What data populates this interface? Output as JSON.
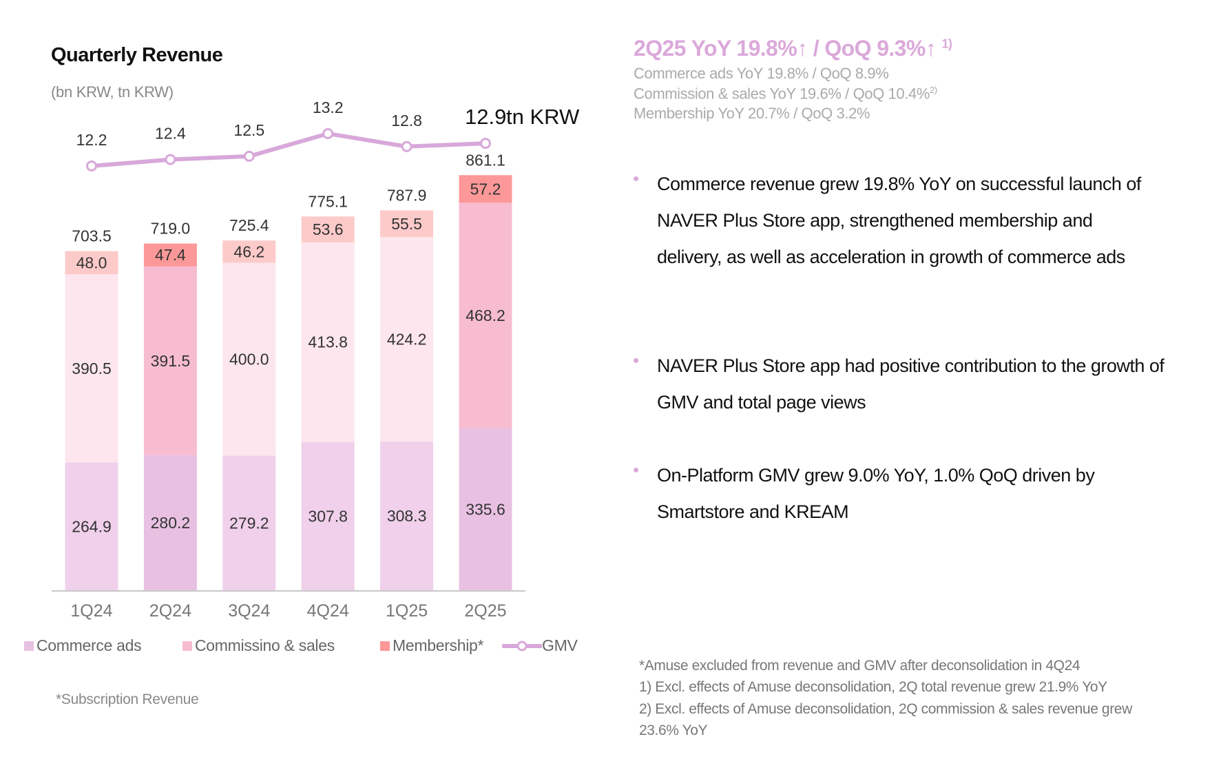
{
  "chart_data": {
    "type": "bar",
    "title": "Quarterly Revenue",
    "unit_label": "(bn KRW, tn KRW)",
    "categories": [
      "1Q24",
      "2Q24",
      "3Q24",
      "4Q24",
      "1Q25",
      "2Q25"
    ],
    "highlighted": [
      false,
      true,
      false,
      false,
      false,
      true
    ],
    "series": [
      {
        "name": "Commerce ads",
        "values": [
          264.9,
          280.2,
          279.2,
          307.8,
          308.3,
          335.6
        ],
        "color": "#f0d0ea",
        "highlight_color": "#e8c1e2"
      },
      {
        "name": "Commissino & sales",
        "values": [
          390.5,
          391.5,
          400.0,
          413.8,
          424.2,
          468.2
        ],
        "color": "#fde6ee",
        "highlight_color": "#f7bccf"
      },
      {
        "name": "Membership*",
        "values": [
          48.0,
          47.4,
          46.2,
          53.6,
          55.5,
          57.2
        ],
        "color": "#fdcaca",
        "highlight_color": "#fc9898"
      }
    ],
    "totals": [
      "703.5",
      "719.0",
      "725.4",
      "775.1",
      "787.9",
      "861.1"
    ],
    "line_series": {
      "name": "GMV",
      "values": [
        12.2,
        12.4,
        12.5,
        13.2,
        12.8,
        12.9
      ],
      "labels": [
        "12.2",
        "12.4",
        "12.5",
        "13.2",
        "12.8",
        "12.9"
      ],
      "unit": "tn KRW",
      "color": "#d8a8da"
    },
    "segment_labels": [
      [
        "264.9",
        "280.2",
        "279.2",
        "307.8",
        "308.3",
        "335.6"
      ],
      [
        "390.5",
        "391.5",
        "400.0",
        "413.8",
        "424.2",
        "468.2"
      ],
      [
        "48.0",
        "47.4",
        "46.2",
        "53.6",
        "55.5",
        "57.2"
      ]
    ],
    "ylim": [
      0,
      900
    ],
    "legend_position": "bottom",
    "grid": false
  },
  "chart_footnote": "*Subscription Revenue",
  "summary": {
    "headline": "2Q25 YoY 19.8%↑ / QoQ 9.3%↑",
    "headline_note": "1)",
    "lines": [
      {
        "text": "Commerce ads YoY 19.8% / QoQ 8.9%",
        "note": ""
      },
      {
        "text": "Commission & sales YoY 19.6% / QoQ 10.4%",
        "note": "2)"
      },
      {
        "text": "Membership YoY 20.7% / QoQ 3.2%",
        "note": ""
      }
    ]
  },
  "bullets": [
    "Commerce revenue grew 19.8% YoY on successful launch of NAVER Plus Store app, strengthened membership and delivery, as well as acceleration in growth of commerce ads",
    "NAVER Plus Store app had positive contribution to the growth of GMV and total page views",
    "On-Platform GMV grew 9.0% YoY, 1.0% QoQ driven by Smartstore and KREAM"
  ],
  "footnotes": [
    "*Amuse excluded from revenue and GMV after deconsolidation in 4Q24",
    "1) Excl. effects of Amuse deconsolidation, 2Q total revenue grew 21.9% YoY",
    "2) Excl. effects of Amuse deconsolidation, 2Q commission & sales revenue grew",
    "23.6% YoY"
  ]
}
